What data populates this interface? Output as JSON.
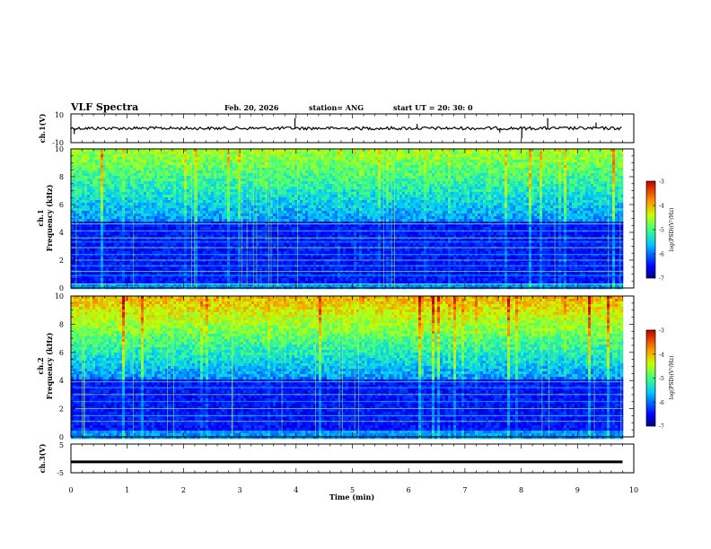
{
  "header": {
    "title": "VLF Spectra",
    "date": "Feb. 20, 2026",
    "station": "station= ANG",
    "start": "start  UT  =   20: 30: 0"
  },
  "chart_data": [
    {
      "type": "line",
      "name": "ch1-waveform",
      "ylabel": "ch.1(V)",
      "ylim": [
        -10,
        10
      ],
      "yticks": [
        "10",
        "-10"
      ],
      "level": 0,
      "spikes": [
        {
          "x": 3.98,
          "y": 7
        },
        {
          "x": 8.47,
          "y": 7
        },
        {
          "x": 8.01,
          "y": -7
        },
        {
          "x": 7.62,
          "y": -3
        },
        {
          "x": 6.15,
          "y": 3
        },
        {
          "x": 9.33,
          "y": 4
        },
        {
          "x": 0.06,
          "y": -4
        }
      ]
    },
    {
      "type": "heatmap",
      "name": "ch1-spectrogram",
      "ylabel_top": "ch.1",
      "ylabel": "Frequency (kHz)",
      "ylim": [
        0,
        10
      ],
      "xlim": [
        0,
        10
      ],
      "data_end_min": 9.8,
      "yticks": [
        0,
        2,
        4,
        6,
        8,
        10
      ],
      "colorbar": {
        "label": "log(PSD)(V²/Hz)",
        "range": [
          -7,
          -3
        ],
        "ticks": [
          "-3",
          "-4",
          "-5",
          "-6",
          "-7"
        ]
      },
      "background_boundary_khz": 4.8,
      "intensity": "medium",
      "lines_khz": [
        0.3,
        0.9,
        1.2,
        1.6,
        2.0,
        2.4,
        2.9,
        3.3,
        3.6,
        4.1,
        4.6
      ]
    },
    {
      "type": "heatmap",
      "name": "ch2-spectrogram",
      "ylabel_top": "ch.2",
      "ylabel": "Frequency (kHz)",
      "ylim": [
        0,
        10
      ],
      "xlim": [
        0,
        10
      ],
      "data_end_min": 9.8,
      "yticks": [
        0,
        2,
        4,
        6,
        8,
        10
      ],
      "colorbar": {
        "label": "log(PSD)(V²/Hz)",
        "range": [
          -7,
          -3
        ],
        "ticks": [
          "-3",
          "-4",
          "-5",
          "-6",
          "-7"
        ]
      },
      "background_boundary_khz": 4.2,
      "intensity": "high",
      "lines_khz": [
        1.1,
        1.5,
        2.0,
        2.5,
        3.0,
        3.5,
        3.9
      ]
    },
    {
      "type": "line",
      "name": "ch3-waveform",
      "ylabel": "ch.3(V)",
      "ylim": [
        -5,
        5
      ],
      "yticks": [
        "5",
        "-5"
      ],
      "level": -1.2
    }
  ],
  "xaxis": {
    "label": "Time  (min)",
    "ticks": [
      "0",
      "1",
      "2",
      "3",
      "4",
      "5",
      "6",
      "7",
      "8",
      "9",
      "10"
    ]
  }
}
